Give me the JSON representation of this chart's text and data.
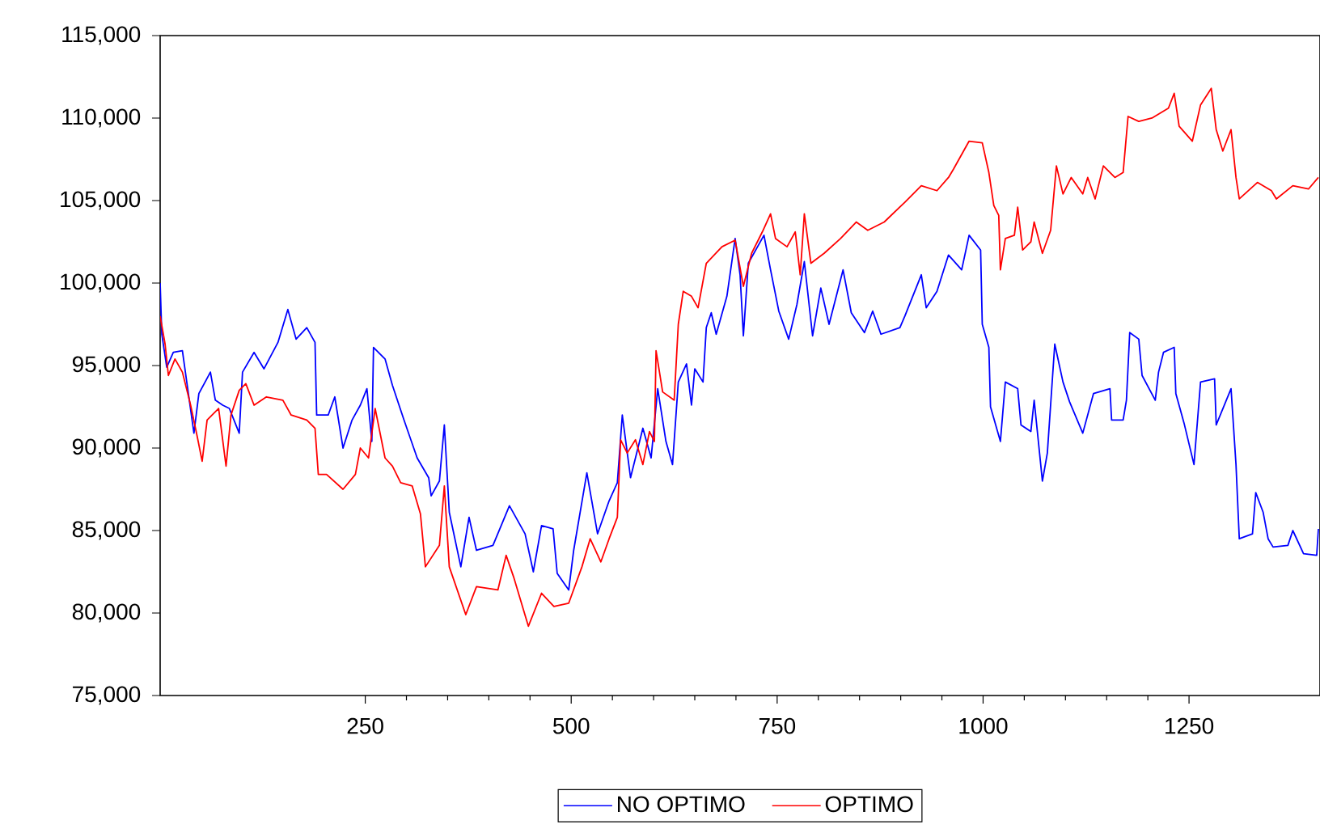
{
  "chart_data": {
    "type": "line",
    "xlim": [
      1,
      1409
    ],
    "ylim": [
      75000,
      115000
    ],
    "xticks": [
      250,
      500,
      750,
      1000,
      1250
    ],
    "yticks": [
      {
        "value": 75000,
        "label": "75,000"
      },
      {
        "value": 80000,
        "label": "80,000"
      },
      {
        "value": 85000,
        "label": "85,000"
      },
      {
        "value": 90000,
        "label": "90,000"
      },
      {
        "value": 95000,
        "label": "95,000"
      },
      {
        "value": 100000,
        "label": "100,000"
      },
      {
        "value": 105000,
        "label": "105,000"
      },
      {
        "value": 110000,
        "label": "110,000"
      },
      {
        "value": 115000,
        "label": "115,000"
      }
    ],
    "legend": "bottom",
    "series": [
      {
        "name": "NO OPTIMO",
        "color": "#0000ff",
        "x": [
          1,
          3,
          9,
          17,
          28,
          42,
          48,
          62,
          68,
          77,
          85,
          97,
          101,
          115,
          127,
          144,
          156,
          166,
          179,
          189,
          191,
          205,
          213,
          223,
          234,
          244,
          252,
          258,
          260,
          274,
          283,
          297,
          313,
          327,
          330,
          340,
          346,
          352,
          366,
          376,
          385,
          405,
          425,
          444,
          454,
          464,
          478,
          483,
          497,
          503,
          519,
          532,
          546,
          556,
          562,
          572,
          587,
          597,
          605,
          615,
          623,
          630,
          640,
          646,
          650,
          660,
          664,
          670,
          676,
          689,
          699,
          705,
          709,
          715,
          734,
          742,
          752,
          764,
          774,
          783,
          793,
          803,
          813,
          830,
          840,
          856,
          866,
          876,
          899,
          905,
          925,
          931,
          944,
          958,
          974,
          983,
          997,
          999,
          1007,
          1009,
          1021,
          1027,
          1042,
          1046,
          1058,
          1062,
          1072,
          1078,
          1087,
          1097,
          1105,
          1121,
          1134,
          1154,
          1156,
          1170,
          1174,
          1178,
          1189,
          1193,
          1209,
          1213,
          1219,
          1232,
          1234,
          1244,
          1256,
          1264,
          1281,
          1283,
          1301,
          1307,
          1311,
          1327,
          1331,
          1340,
          1346,
          1352,
          1370,
          1376,
          1389,
          1405,
          1407
        ],
        "values": [
          100000,
          96900,
          94900,
          95800,
          95900,
          90900,
          93300,
          94600,
          92900,
          92600,
          92400,
          90900,
          94600,
          95800,
          94800,
          96400,
          98400,
          96600,
          97300,
          96400,
          92000,
          92000,
          93100,
          90000,
          91700,
          92600,
          93600,
          90400,
          96100,
          95400,
          93800,
          91700,
          89400,
          88200,
          87100,
          88000,
          91400,
          86100,
          82800,
          85800,
          83800,
          84100,
          86500,
          84800,
          82500,
          85300,
          85100,
          82400,
          81400,
          83800,
          88500,
          84800,
          86800,
          87900,
          92000,
          88200,
          91200,
          89400,
          93600,
          90400,
          89000,
          94000,
          95100,
          92600,
          94800,
          94000,
          97300,
          98200,
          96900,
          99200,
          102700,
          100500,
          96800,
          101200,
          102900,
          100800,
          98300,
          96600,
          98700,
          101300,
          96800,
          99700,
          97500,
          100800,
          98200,
          97000,
          98300,
          96900,
          97300,
          98000,
          100500,
          98500,
          99500,
          101700,
          100800,
          102900,
          102000,
          97500,
          96100,
          92500,
          90400,
          94000,
          93600,
          91400,
          91000,
          92900,
          88000,
          89700,
          96300,
          94000,
          92800,
          90900,
          93300,
          93600,
          91700,
          91700,
          92900,
          97000,
          96600,
          94400,
          92900,
          94600,
          95800,
          96100,
          93300,
          91500,
          89000,
          94000,
          94200,
          91400,
          93600,
          89000,
          84500,
          84800,
          87300,
          86100,
          84500,
          84000,
          84100,
          85000,
          83600,
          83500,
          85100
        ]
      },
      {
        "name": "OPTIMO",
        "color": "#ff0000",
        "x": [
          1,
          7,
          11,
          19,
          28,
          38,
          46,
          52,
          58,
          72,
          81,
          87,
          97,
          105,
          115,
          130,
          150,
          160,
          179,
          189,
          193,
          203,
          223,
          238,
          244,
          254,
          262,
          274,
          283,
          293,
          307,
          317,
          323,
          340,
          346,
          352,
          372,
          385,
          411,
          421,
          430,
          448,
          464,
          479,
          497,
          513,
          523,
          536,
          546,
          556,
          560,
          568,
          578,
          587,
          595,
          601,
          603,
          611,
          625,
          630,
          636,
          646,
          654,
          664,
          683,
          699,
          709,
          719,
          732,
          742,
          748,
          762,
          772,
          778,
          783,
          791,
          807,
          827,
          846,
          860,
          880,
          905,
          925,
          944,
          958,
          964,
          983,
          999,
          1007,
          1013,
          1019,
          1021,
          1027,
          1038,
          1042,
          1048,
          1058,
          1062,
          1072,
          1082,
          1089,
          1097,
          1107,
          1121,
          1127,
          1136,
          1146,
          1160,
          1170,
          1176,
          1189,
          1205,
          1225,
          1232,
          1238,
          1254,
          1264,
          1277,
          1283,
          1291,
          1301,
          1307,
          1311,
          1333,
          1350,
          1356,
          1376,
          1395,
          1407
        ],
        "values": [
          98000,
          96300,
          94400,
          95400,
          94600,
          92600,
          90700,
          89200,
          91700,
          92400,
          88900,
          92000,
          93500,
          93900,
          92600,
          93100,
          92900,
          92000,
          91700,
          91200,
          88400,
          88400,
          87500,
          88400,
          90000,
          89400,
          92400,
          89400,
          88900,
          87900,
          87700,
          86000,
          82800,
          84100,
          87700,
          82800,
          79900,
          81600,
          81400,
          83500,
          82200,
          79200,
          81200,
          80400,
          80600,
          82800,
          84500,
          83100,
          84500,
          85800,
          90500,
          89700,
          90500,
          89000,
          91000,
          90400,
          95900,
          93400,
          92900,
          97500,
          99500,
          99200,
          98500,
          101200,
          102200,
          102600,
          99800,
          101800,
          103100,
          104200,
          102700,
          102200,
          103100,
          100500,
          104200,
          101200,
          101800,
          102700,
          103700,
          103200,
          103700,
          104900,
          105900,
          105600,
          106400,
          106900,
          108600,
          108500,
          106700,
          104700,
          104100,
          100800,
          102700,
          102900,
          104600,
          102000,
          102500,
          103700,
          101800,
          103200,
          107100,
          105400,
          106400,
          105400,
          106400,
          105100,
          107100,
          106400,
          106700,
          110100,
          109800,
          110000,
          110600,
          111500,
          109500,
          108600,
          110800,
          111800,
          109300,
          108000,
          109300,
          106400,
          105100,
          106100,
          105600,
          105100,
          105900,
          105700,
          106400
        ]
      }
    ]
  }
}
